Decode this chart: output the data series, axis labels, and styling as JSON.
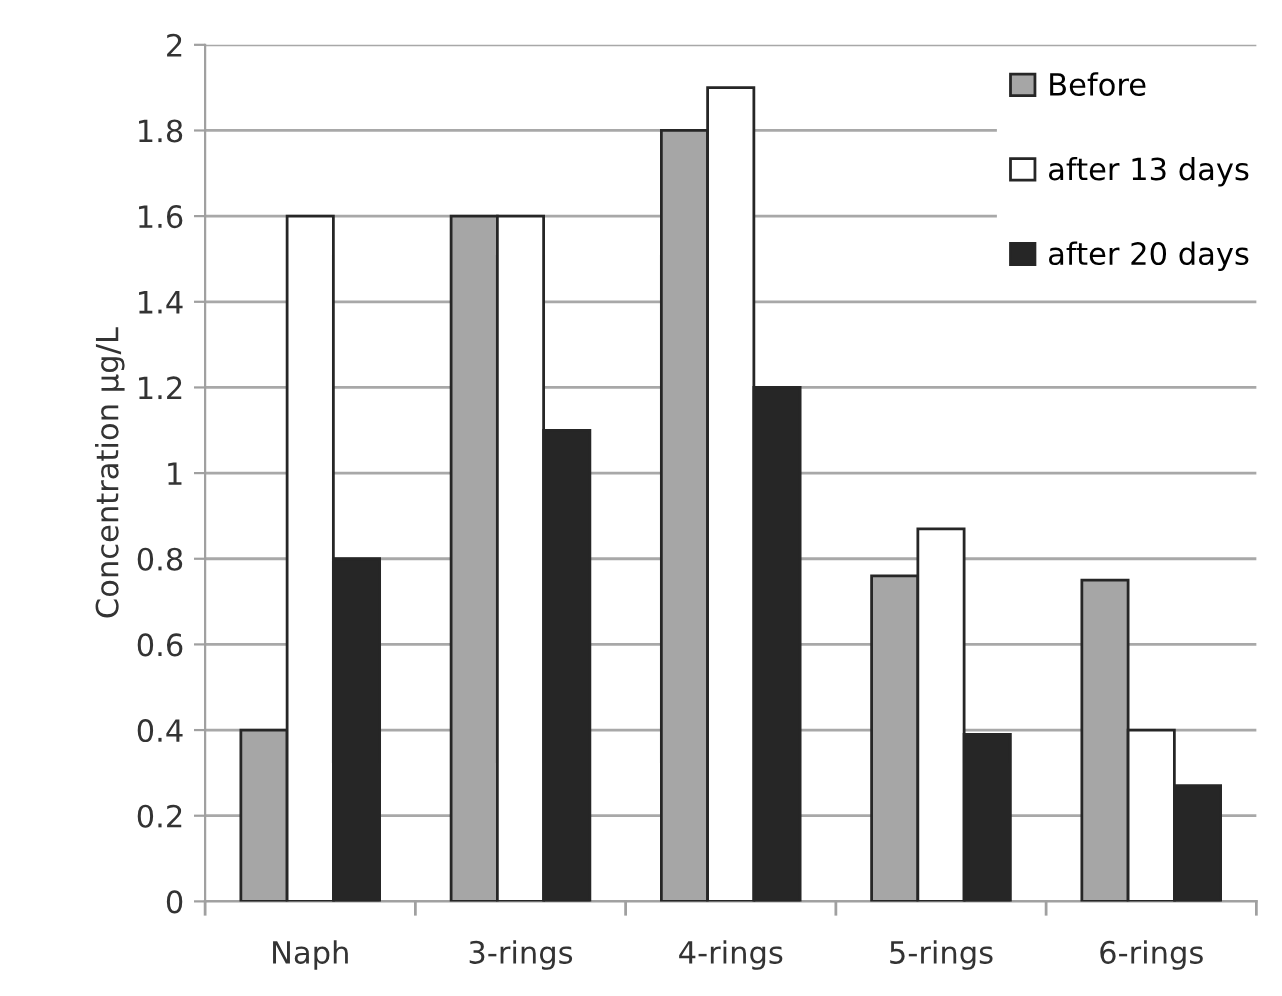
{
  "chart_data": {
    "type": "bar",
    "ylabel": "Concentration µg/L",
    "categories": [
      "Naph",
      "3-rings",
      "4-rings",
      "5-rings",
      "6-rings"
    ],
    "series": [
      {
        "name": "Before",
        "color": "#a6a6a6",
        "values": [
          0.4,
          1.6,
          1.8,
          0.76,
          0.75
        ]
      },
      {
        "name": "after 13 days",
        "color": "#ffffff",
        "values": [
          1.6,
          1.6,
          1.9,
          0.87,
          0.4
        ]
      },
      {
        "name": "after 20 days",
        "color": "#262626",
        "values": [
          0.8,
          1.1,
          1.2,
          0.39,
          0.27
        ]
      }
    ],
    "ylim": [
      0,
      2
    ],
    "yticks": [
      0,
      0.2,
      0.4,
      0.6,
      0.8,
      1,
      1.2,
      1.4,
      1.6,
      1.8,
      2
    ],
    "grid": "y",
    "legend": "top right"
  }
}
